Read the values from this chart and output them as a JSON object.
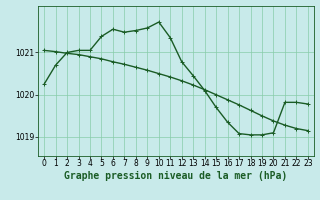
{
  "title": "Graphe pression niveau de la mer (hPa)",
  "background_color": "#c8eaea",
  "plot_bg_color": "#c8eaea",
  "grid_color": "#88ccaa",
  "line_color": "#1a5c25",
  "ylim": [
    1018.55,
    1022.1
  ],
  "yticks": [
    1019,
    1020,
    1021
  ],
  "xlim": [
    -0.5,
    23.5
  ],
  "xticks": [
    0,
    1,
    2,
    3,
    4,
    5,
    6,
    7,
    8,
    9,
    10,
    11,
    12,
    13,
    14,
    15,
    16,
    17,
    18,
    19,
    20,
    21,
    22,
    23
  ],
  "series1_x": [
    0,
    1,
    2,
    3,
    4,
    5,
    6,
    7,
    8,
    9,
    10,
    11,
    12,
    13,
    14,
    15,
    16,
    17,
    18,
    19,
    20,
    21,
    22,
    23
  ],
  "series1_y": [
    1020.25,
    1020.7,
    1021.0,
    1021.05,
    1021.05,
    1021.38,
    1021.55,
    1021.48,
    1021.52,
    1021.58,
    1021.72,
    1021.35,
    1020.78,
    1020.45,
    1020.1,
    1019.7,
    1019.35,
    1019.08,
    1019.05,
    1019.05,
    1019.1,
    1019.82,
    1019.82,
    1019.78
  ],
  "series2_x": [
    0,
    1,
    2,
    3,
    4,
    5,
    6,
    7,
    8,
    9,
    10,
    11,
    12,
    13,
    14,
    15,
    16,
    17,
    18,
    19,
    20,
    21,
    22,
    23
  ],
  "series2_y": [
    1021.05,
    1021.02,
    1020.98,
    1020.95,
    1020.9,
    1020.85,
    1020.78,
    1020.72,
    1020.65,
    1020.58,
    1020.5,
    1020.42,
    1020.33,
    1020.23,
    1020.12,
    1020.0,
    1019.88,
    1019.76,
    1019.63,
    1019.5,
    1019.38,
    1019.28,
    1019.2,
    1019.15
  ],
  "tick_fontsize": 5.5,
  "xlabel_fontsize": 7,
  "line_width": 1.0,
  "marker_size": 2.5
}
